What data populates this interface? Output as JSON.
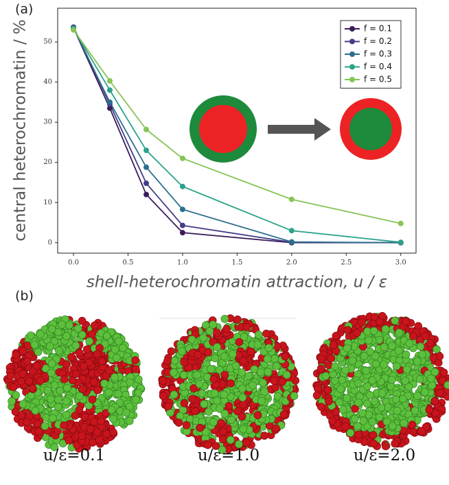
{
  "panel_labels": [
    "(a)",
    "(b)"
  ],
  "chart_data": {
    "type": "line",
    "xlabel": "shell-heterochromatin attraction, u / ε",
    "ylabel": "central heterochromatin / %",
    "x": [
      0,
      0.333,
      0.667,
      1,
      2,
      3
    ],
    "series": [
      {
        "name": "f = 0.1",
        "color": "#3b1c5a",
        "values": [
          53.5,
          33.5,
          12,
          2.5,
          0,
          0
        ]
      },
      {
        "name": "f = 0.2",
        "color": "#433d88",
        "values": [
          53.7,
          34.5,
          14.8,
          4.3,
          0.1,
          0
        ]
      },
      {
        "name": "f = 0.3",
        "color": "#2b6e8e",
        "values": [
          53.5,
          35,
          18.8,
          8.3,
          0.2,
          0
        ]
      },
      {
        "name": "f = 0.4",
        "color": "#2aa38a",
        "values": [
          53.3,
          38,
          23,
          14,
          3,
          0.1
        ]
      },
      {
        "name": "f = 0.5",
        "color": "#86c456",
        "values": [
          53,
          40.3,
          28.2,
          21,
          10.8,
          4.8
        ]
      }
    ],
    "xlim": [
      -0.145,
      3.14
    ],
    "ylim": [
      -2.6,
      58.4
    ],
    "xticks": [
      {
        "value": 0,
        "label": "0.0"
      },
      {
        "value": 0.5,
        "label": "0.5"
      },
      {
        "value": 1,
        "label": "1.0"
      },
      {
        "value": 1.5,
        "label": "1.5"
      },
      {
        "value": 2,
        "label": "2.0"
      },
      {
        "value": 2.5,
        "label": "2.5"
      },
      {
        "value": 3,
        "label": "3.0"
      }
    ],
    "yticks": [
      0,
      10,
      20,
      30,
      40,
      50
    ],
    "legend": "upper right",
    "grid": false
  },
  "images": [
    {
      "caption": "u/ε=0.1"
    },
    {
      "caption": "u/ε=1.0"
    },
    {
      "caption": "u/ε=2.0"
    }
  ]
}
